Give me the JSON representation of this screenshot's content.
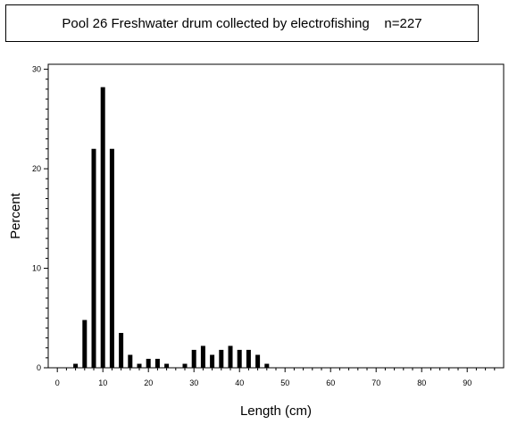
{
  "chart_data": {
    "type": "bar",
    "title": "Pool 26 Freshwater drum collected by electrofishing    n=227",
    "xlabel": "Length (cm)",
    "ylabel": "Percent",
    "xlim": [
      -2,
      98
    ],
    "ylim": [
      0,
      30.5
    ],
    "xticks": [
      0,
      10,
      20,
      30,
      40,
      50,
      60,
      70,
      80,
      90
    ],
    "yticks": [
      0,
      10,
      20,
      30
    ],
    "grid": false,
    "legend": "none",
    "bar_color": "#000000",
    "x": [
      4,
      6,
      8,
      10,
      12,
      14,
      16,
      18,
      20,
      22,
      24,
      26,
      28,
      30,
      32,
      34,
      36,
      38,
      40,
      42,
      44,
      46
    ],
    "values": [
      0.4,
      4.8,
      22.0,
      28.2,
      22.0,
      3.5,
      1.3,
      0.4,
      0.9,
      0.9,
      0.4,
      0.0,
      0.4,
      1.8,
      2.2,
      1.3,
      1.8,
      2.2,
      1.8,
      1.8,
      1.3,
      0.4
    ]
  }
}
